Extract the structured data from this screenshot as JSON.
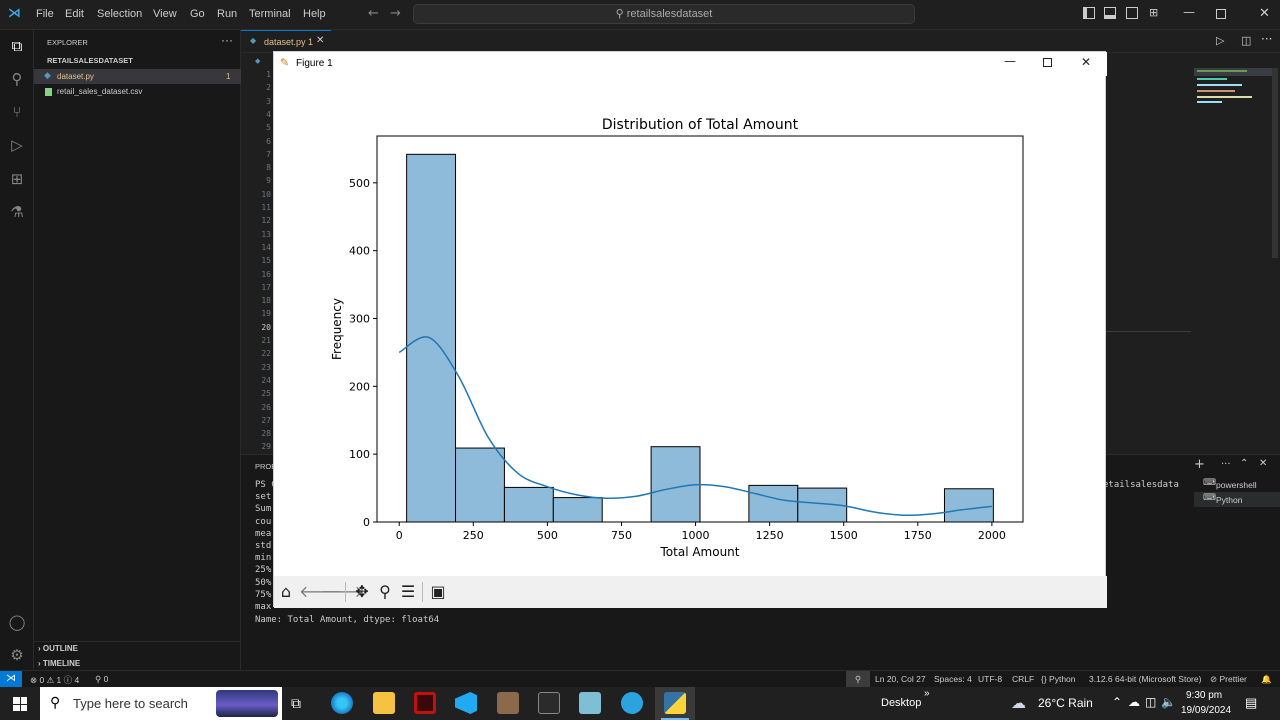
{
  "menu": [
    "File",
    "Edit",
    "Selection",
    "View",
    "Go",
    "Run",
    "Terminal",
    "Help"
  ],
  "search": {
    "text": "retailsalesdataset"
  },
  "sidebar": {
    "explorer_title": "EXPLORER",
    "project": "RETAILSALESDATASET",
    "files": [
      {
        "name": "dataset.py",
        "badge": "1"
      },
      {
        "name": "retail_sales_dataset.csv"
      }
    ],
    "outline": "OUTLINE",
    "timeline": "TIMELINE"
  },
  "editor": {
    "tab_label": "dataset.py 1",
    "line_numbers": [
      "1",
      "2",
      "3",
      "4",
      "5",
      "6",
      "7",
      "8",
      "9",
      "10",
      "11",
      "12",
      "13",
      "14",
      "15",
      "16",
      "17",
      "18",
      "19",
      "20",
      "21",
      "22",
      "23",
      "24",
      "25",
      "26",
      "27",
      "28",
      "29"
    ],
    "active_line": "20"
  },
  "terminal": {
    "panel_label": "PROB",
    "lines": [
      "PS C",
      "set",
      "Sum",
      "cou",
      "mea",
      "std",
      "min",
      "25%",
      "50%",
      "75%",
      "max"
    ],
    "last_line": "Name: Total Amount, dtype: float64",
    "right_text": "etailsalesdata",
    "shells": [
      "powershell",
      "Python"
    ]
  },
  "figure": {
    "window_title": "Figure 1",
    "toolbar_icons": [
      "home-icon",
      "back-icon",
      "forward-icon",
      "pan-icon",
      "zoom-icon",
      "configure-icon",
      "save-icon"
    ]
  },
  "chart_data": {
    "type": "bar",
    "title": "Distribution of Total Amount",
    "xlabel": "Total Amount",
    "ylabel": "Frequency",
    "bins": [
      {
        "x0": 25,
        "x1": 190,
        "count": 542
      },
      {
        "x0": 190,
        "x1": 355,
        "count": 109
      },
      {
        "x0": 355,
        "x1": 520,
        "count": 51
      },
      {
        "x0": 520,
        "x1": 685,
        "count": 36
      },
      {
        "x0": 685,
        "x1": 850,
        "count": 0
      },
      {
        "x0": 850,
        "x1": 1015,
        "count": 111
      },
      {
        "x0": 1015,
        "x1": 1180,
        "count": 0
      },
      {
        "x0": 1180,
        "x1": 1345,
        "count": 54
      },
      {
        "x0": 1345,
        "x1": 1510,
        "count": 50
      },
      {
        "x0": 1510,
        "x1": 1675,
        "count": 0
      },
      {
        "x0": 1675,
        "x1": 1840,
        "count": 0
      },
      {
        "x0": 1840,
        "x1": 2005,
        "count": 49
      }
    ],
    "kde": [
      [
        0,
        250
      ],
      [
        100,
        272
      ],
      [
        200,
        215
      ],
      [
        300,
        125
      ],
      [
        400,
        72
      ],
      [
        500,
        52
      ],
      [
        600,
        40
      ],
      [
        700,
        35
      ],
      [
        800,
        38
      ],
      [
        900,
        48
      ],
      [
        1000,
        55
      ],
      [
        1100,
        52
      ],
      [
        1200,
        42
      ],
      [
        1300,
        32
      ],
      [
        1400,
        28
      ],
      [
        1500,
        24
      ],
      [
        1600,
        15
      ],
      [
        1700,
        10
      ],
      [
        1800,
        12
      ],
      [
        1900,
        18
      ],
      [
        2000,
        23
      ]
    ],
    "xticks": [
      0,
      250,
      500,
      750,
      1000,
      1250,
      1500,
      1750,
      2000
    ],
    "yticks": [
      0,
      100,
      200,
      300,
      400,
      500
    ],
    "xlim": [
      -75,
      2105
    ],
    "ylim": [
      0,
      569
    ],
    "bar_color": "#8fbbda",
    "line_color": "#1f77b4"
  },
  "statusbar": {
    "left": [
      "⊗ 0 ⚠ 1 ⓘ 4",
      "⚲ 0"
    ],
    "right": [
      "Ln 20, Col 27",
      "Spaces: 4",
      "UTF-8",
      "CRLF",
      "{} Python",
      "3.12.6 64-bit (Microsoft Store)",
      "⊘ Prettier"
    ]
  },
  "taskbar": {
    "search_placeholder": "Type here to search",
    "desktop": "Desktop",
    "weather": "26°C  Rain",
    "time": "9:30 pm",
    "date": "19/09/2024"
  },
  "colors": {
    "accent": "#0078d4",
    "editor_bg": "#1f1f1f",
    "sidebar_bg": "#181818"
  }
}
